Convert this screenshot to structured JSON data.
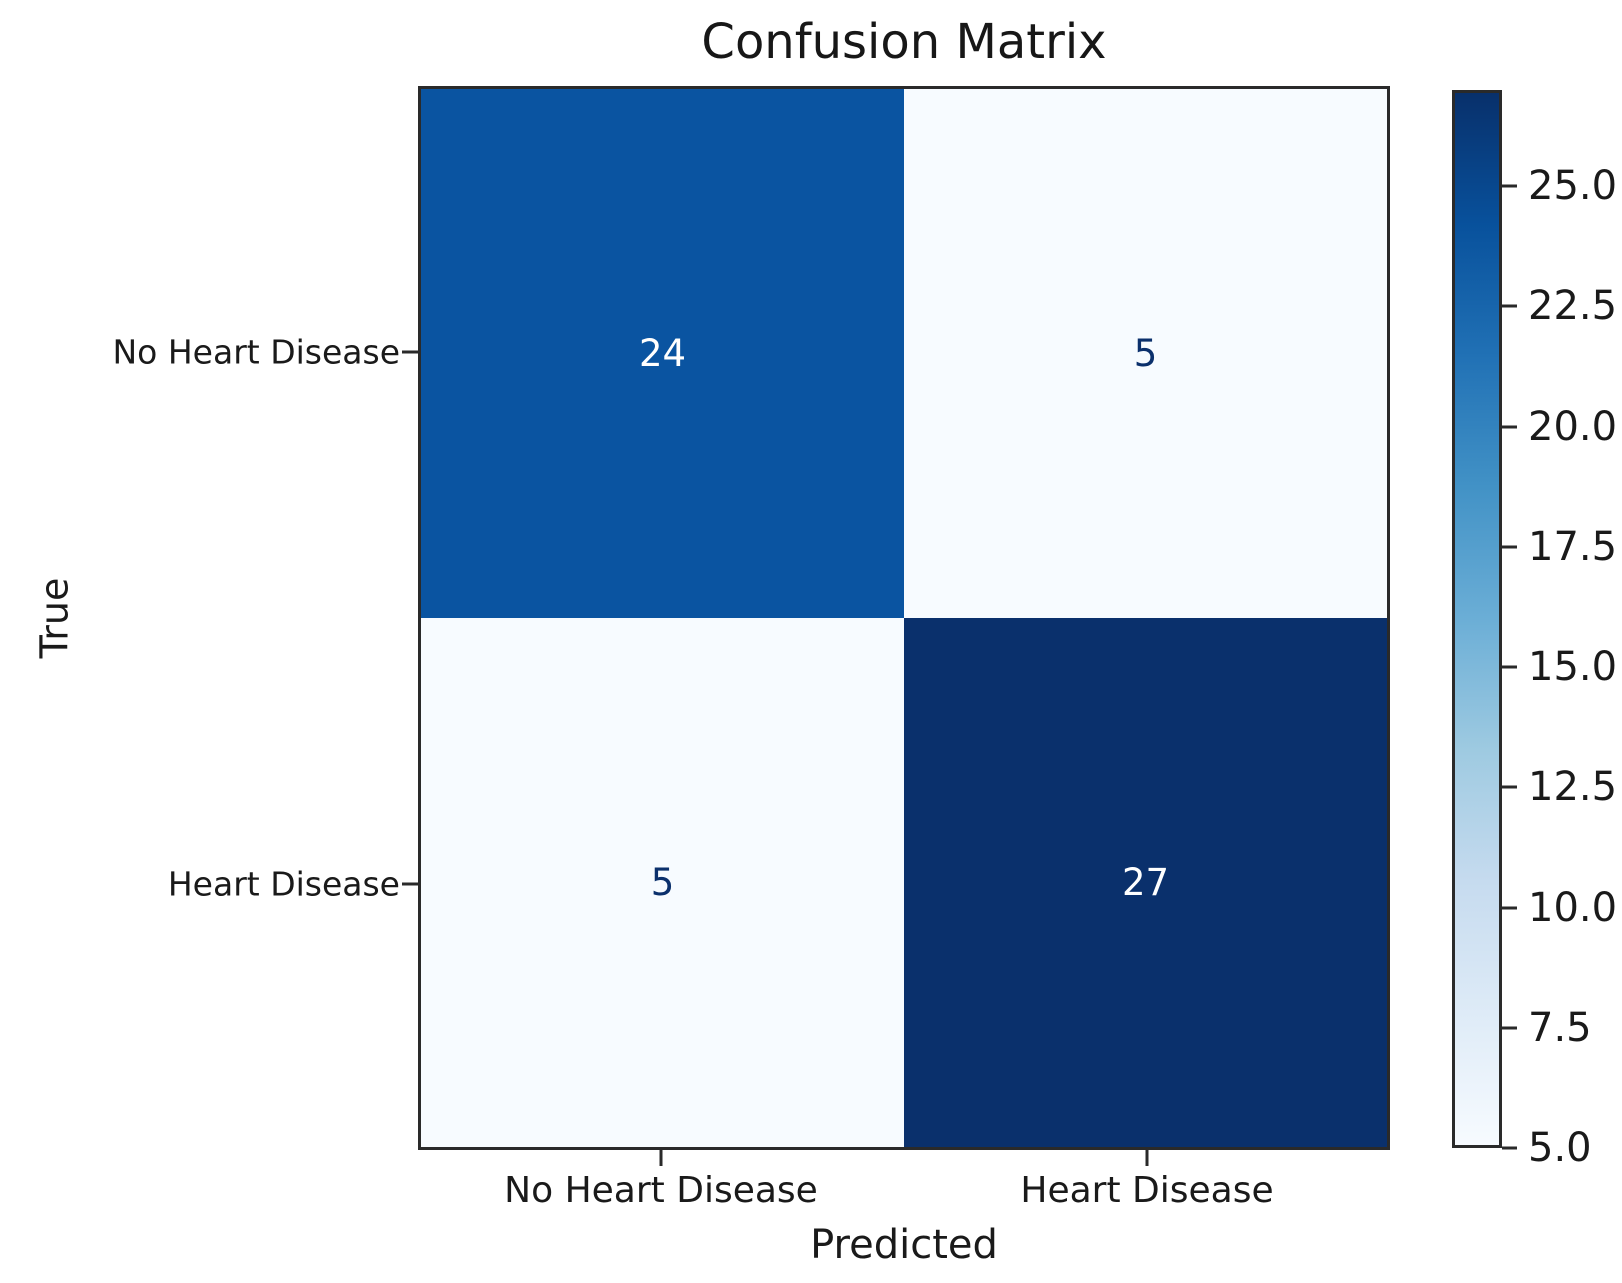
{
  "chart_data": {
    "type": "heatmap",
    "title": "Confusion Matrix",
    "xlabel": "Predicted",
    "ylabel": "True",
    "x_categories": [
      "No Heart Disease",
      "Heart Disease"
    ],
    "y_categories": [
      "No Heart Disease",
      "Heart Disease"
    ],
    "matrix": [
      [
        24,
        5
      ],
      [
        5,
        27
      ]
    ],
    "vmin": 5,
    "vmax": 27,
    "colormap": "Blues",
    "colorbar_ticks": [
      "25.0",
      "22.5",
      "20.0",
      "17.5",
      "15.0",
      "12.5",
      "10.0",
      "7.5",
      "5.0"
    ],
    "colorbar_tick_values": [
      25.0,
      22.5,
      20.0,
      17.5,
      15.0,
      12.5,
      10.0,
      7.5,
      5.0
    ],
    "cell_colors": [
      [
        "#0a54a1",
        "#f7fbff"
      ],
      [
        "#f7fbff",
        "#0a306c"
      ]
    ],
    "cell_text_colors": [
      [
        "#ffffff",
        "#0b306c"
      ],
      [
        "#0b306c",
        "#ffffff"
      ]
    ],
    "colormap_stops": [
      "#f7fbff",
      "#deebf7",
      "#c6dbef",
      "#9ecae1",
      "#6baed6",
      "#4292c6",
      "#2171b5",
      "#08519c",
      "#08306b"
    ],
    "colors": {
      "background": "#ffffff",
      "spine": "#2a2a2a",
      "text": "#1a1a1a"
    }
  }
}
